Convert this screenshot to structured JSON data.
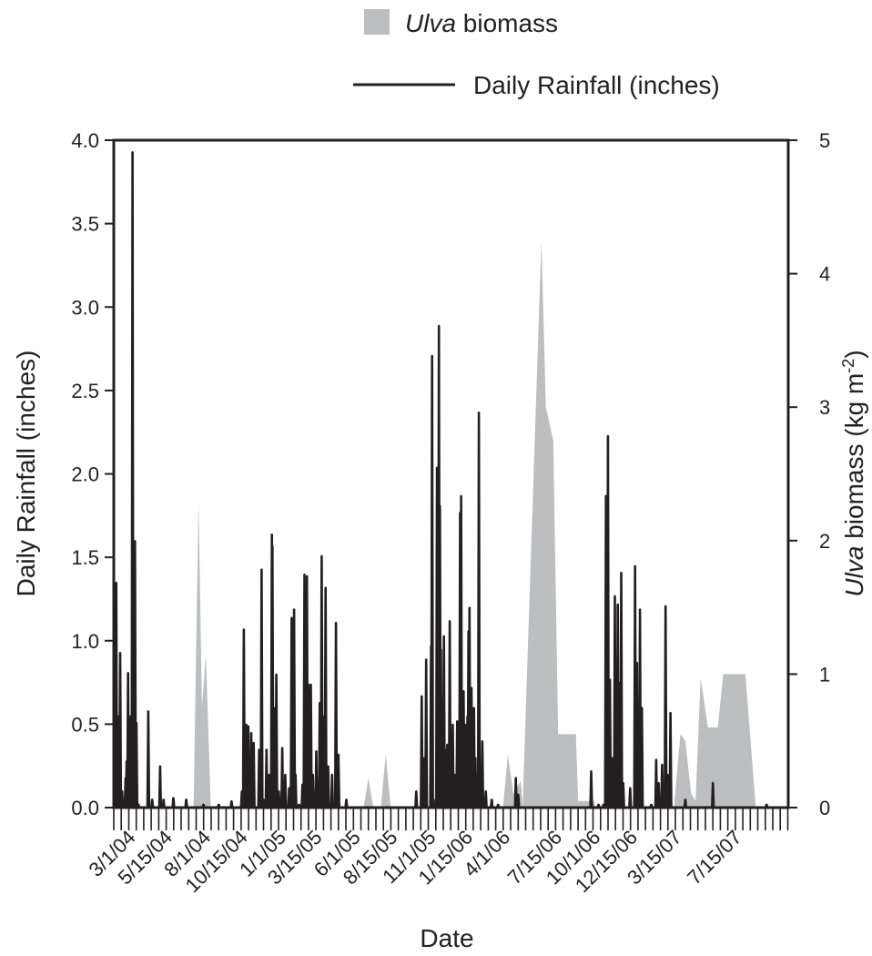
{
  "chart_data": {
    "type": "line",
    "title": "",
    "xlabel": "Date",
    "ylabel_left": "Daily Rainfall (inches)",
    "ylabel_right_italic": "Ulva",
    "ylabel_right_rest": " biomass (kg m",
    "ylabel_right_sup": "-2",
    "ylabel_right_close": ")",
    "ylim_left": [
      0,
      4.0
    ],
    "ylim_right": [
      0,
      5
    ],
    "yticks_left": [
      "0.0",
      "0.5",
      "1.0",
      "1.5",
      "2.0",
      "2.5",
      "3.0",
      "3.5",
      "4.0"
    ],
    "yticks_right": [
      "0",
      "1",
      "2",
      "3",
      "4",
      "5"
    ],
    "xlim": [
      "2004-01-15",
      "2007-10-15"
    ],
    "xtick_labels": [
      "3/1/04",
      "5/15/04",
      "8/1/04",
      "10/15/04",
      "1/1/05",
      "3/15/05",
      "6/1/05",
      "8/15/05",
      "11/1/05",
      "1/15/06",
      "4/1/06",
      "7/15/06",
      "10/1/06",
      "12/15/06",
      "3/15/07",
      "7/15/07"
    ],
    "xtick_dates": [
      "2004-03-01",
      "2004-05-15",
      "2004-08-01",
      "2004-10-15",
      "2005-01-01",
      "2005-03-15",
      "2005-06-01",
      "2005-08-15",
      "2005-11-01",
      "2006-01-15",
      "2006-04-01",
      "2006-07-15",
      "2006-10-01",
      "2006-12-15",
      "2007-03-15",
      "2007-07-15"
    ],
    "legend": {
      "position": "top-right",
      "entries": [
        {
          "italic": "Ulva",
          "rest": " biomass",
          "style": "area",
          "color": "#bcbec0"
        },
        {
          "italic": "",
          "rest": "Daily Rainfall (inches)",
          "style": "line",
          "color": "#231f20"
        }
      ]
    },
    "series": [
      {
        "name": "Ulva biomass",
        "style": "area",
        "axis": "right",
        "color": "#bcbec0",
        "points": [
          [
            "2004-06-25",
            0
          ],
          [
            "2004-07-05",
            2.3
          ],
          [
            "2004-07-12",
            0.75
          ],
          [
            "2004-07-20",
            1.15
          ],
          [
            "2004-07-30",
            0
          ],
          [
            "2005-06-05",
            0
          ],
          [
            "2005-06-15",
            0.22
          ],
          [
            "2005-06-25",
            0
          ],
          [
            "2005-07-10",
            0
          ],
          [
            "2005-07-20",
            0.4
          ],
          [
            "2005-07-30",
            0
          ],
          [
            "2006-03-15",
            0
          ],
          [
            "2006-03-25",
            0.4
          ],
          [
            "2006-04-05",
            0.1
          ],
          [
            "2006-04-20",
            0.2
          ],
          [
            "2006-04-25",
            0
          ],
          [
            "2006-04-25",
            0.15
          ],
          [
            "2006-06-01",
            4.25
          ],
          [
            "2006-06-10",
            3.0
          ],
          [
            "2006-06-25",
            2.75
          ],
          [
            "2006-07-05",
            0.55
          ],
          [
            "2006-08-10",
            0.55
          ],
          [
            "2006-08-15",
            0
          ],
          [
            "2006-08-15",
            0.05
          ],
          [
            "2006-09-15",
            0.05
          ],
          [
            "2006-09-20",
            0
          ],
          [
            "2007-02-25",
            0
          ],
          [
            "2007-03-10",
            0.55
          ],
          [
            "2007-03-20",
            0.5
          ],
          [
            "2007-04-01",
            0.1
          ],
          [
            "2007-04-10",
            0.05
          ],
          [
            "2007-04-20",
            0.97
          ],
          [
            "2007-05-05",
            0.6
          ],
          [
            "2007-05-25",
            0.6
          ],
          [
            "2007-06-05",
            1.0
          ],
          [
            "2007-07-20",
            1.0
          ],
          [
            "2007-08-10",
            0
          ]
        ]
      },
      {
        "name": "Daily Rainfall (inches)",
        "style": "line",
        "axis": "left",
        "color": "#231f20",
        "points": [
          [
            "2004-01-20",
            1.35
          ],
          [
            "2004-01-25",
            0.55
          ],
          [
            "2004-01-28",
            0.93
          ],
          [
            "2004-02-01",
            0.1
          ],
          [
            "2004-02-08",
            0.18
          ],
          [
            "2004-02-10",
            0.28
          ],
          [
            "2004-02-13",
            0.81
          ],
          [
            "2004-02-16",
            0.05
          ],
          [
            "2004-02-18",
            0.55
          ],
          [
            "2004-02-22",
            3.93
          ],
          [
            "2004-02-25",
            0.1
          ],
          [
            "2004-02-27",
            1.6
          ],
          [
            "2004-03-01",
            0.51
          ],
          [
            "2004-03-05",
            0.02
          ],
          [
            "2004-03-25",
            0.58
          ],
          [
            "2004-04-02",
            0.05
          ],
          [
            "2004-04-18",
            0.25
          ],
          [
            "2004-04-25",
            0.05
          ],
          [
            "2004-05-15",
            0.06
          ],
          [
            "2004-06-10",
            0.05
          ],
          [
            "2004-07-15",
            0.02
          ],
          [
            "2004-08-15",
            0.02
          ],
          [
            "2004-09-10",
            0.04
          ],
          [
            "2004-10-01",
            0.1
          ],
          [
            "2004-10-05",
            1.07
          ],
          [
            "2004-10-10",
            0.5
          ],
          [
            "2004-10-14",
            0.49
          ],
          [
            "2004-10-18",
            0.15
          ],
          [
            "2004-10-20",
            0.45
          ],
          [
            "2004-10-25",
            0.39
          ],
          [
            "2004-11-05",
            0.35
          ],
          [
            "2004-11-10",
            1.43
          ],
          [
            "2004-11-14",
            0.05
          ],
          [
            "2004-11-20",
            0.35
          ],
          [
            "2004-11-25",
            0.2
          ],
          [
            "2004-12-01",
            1.64
          ],
          [
            "2004-12-02",
            1.57
          ],
          [
            "2004-12-03",
            0.6
          ],
          [
            "2004-12-05",
            0.6
          ],
          [
            "2004-12-07",
            0.55
          ],
          [
            "2004-12-10",
            0.8
          ],
          [
            "2004-12-15",
            0.1
          ],
          [
            "2004-12-22",
            0.36
          ],
          [
            "2004-12-28",
            0.2
          ],
          [
            "2005-01-05",
            0.12
          ],
          [
            "2005-01-10",
            1.14
          ],
          [
            "2005-01-13",
            0.45
          ],
          [
            "2005-01-15",
            1.19
          ],
          [
            "2005-01-18",
            0.2
          ],
          [
            "2005-01-25",
            0.02
          ],
          [
            "2005-02-01",
            0.14
          ],
          [
            "2005-02-05",
            1.4
          ],
          [
            "2005-02-07",
            0.75
          ],
          [
            "2005-02-10",
            1.39
          ],
          [
            "2005-02-13",
            0.74
          ],
          [
            "2005-02-16",
            0.45
          ],
          [
            "2005-02-18",
            0.74
          ],
          [
            "2005-02-22",
            0.2
          ],
          [
            "2005-03-01",
            0.34
          ],
          [
            "2005-03-08",
            0.63
          ],
          [
            "2005-03-12",
            1.51
          ],
          [
            "2005-03-15",
            0.55
          ],
          [
            "2005-03-20",
            1.32
          ],
          [
            "2005-03-25",
            0.25
          ],
          [
            "2005-04-02",
            0.2
          ],
          [
            "2005-04-10",
            1.11
          ],
          [
            "2005-04-15",
            0.32
          ],
          [
            "2005-05-01",
            0.05
          ],
          [
            "2005-09-20",
            0.1
          ],
          [
            "2005-10-01",
            0.67
          ],
          [
            "2005-10-06",
            0.3
          ],
          [
            "2005-10-10",
            0.89
          ],
          [
            "2005-10-20",
            0.97
          ],
          [
            "2005-10-22",
            2.71
          ],
          [
            "2005-10-25",
            0.05
          ],
          [
            "2005-11-01",
            2.04
          ],
          [
            "2005-11-03",
            0.95
          ],
          [
            "2005-11-05",
            2.89
          ],
          [
            "2005-11-07",
            1.81
          ],
          [
            "2005-11-09",
            0.95
          ],
          [
            "2005-11-12",
            0.55
          ],
          [
            "2005-11-15",
            1.03
          ],
          [
            "2005-11-18",
            0.35
          ],
          [
            "2005-11-22",
            0.38
          ],
          [
            "2005-11-27",
            1.12
          ],
          [
            "2005-12-03",
            0.5
          ],
          [
            "2005-12-08",
            0.2
          ],
          [
            "2005-12-12",
            0.52
          ],
          [
            "2005-12-18",
            1.77
          ],
          [
            "2005-12-20",
            1.87
          ],
          [
            "2005-12-22",
            0.3
          ],
          [
            "2005-12-25",
            0.7
          ],
          [
            "2005-12-28",
            0.5
          ],
          [
            "2005-12-30",
            0.35
          ],
          [
            "2006-01-02",
            0.55
          ],
          [
            "2006-01-04",
            1.06
          ],
          [
            "2006-01-06",
            1.2
          ],
          [
            "2006-01-08",
            0.45
          ],
          [
            "2006-01-10",
            0.72
          ],
          [
            "2006-01-13",
            0.15
          ],
          [
            "2006-01-15",
            0.6
          ],
          [
            "2006-01-18",
            0.3
          ],
          [
            "2006-01-20",
            0.2
          ],
          [
            "2006-01-25",
            2.37
          ],
          [
            "2006-02-01",
            0.4
          ],
          [
            "2006-02-08",
            0.1
          ],
          [
            "2006-02-20",
            0.05
          ],
          [
            "2006-03-05",
            0.02
          ],
          [
            "2006-04-10",
            0.18
          ],
          [
            "2006-04-15",
            0.08
          ],
          [
            "2006-09-10",
            0.22
          ],
          [
            "2006-09-25",
            0.02
          ],
          [
            "2006-10-05",
            0.02
          ],
          [
            "2006-10-10",
            1.87
          ],
          [
            "2006-10-12",
            0.67
          ],
          [
            "2006-10-14",
            2.23
          ],
          [
            "2006-10-16",
            0.32
          ],
          [
            "2006-10-18",
            0.77
          ],
          [
            "2006-10-22",
            0.3
          ],
          [
            "2006-10-24",
            0.15
          ],
          [
            "2006-10-28",
            1.27
          ],
          [
            "2006-10-31",
            0.4
          ],
          [
            "2006-11-03",
            1.22
          ],
          [
            "2006-11-06",
            0.75
          ],
          [
            "2006-11-10",
            1.41
          ],
          [
            "2006-11-14",
            0.15
          ],
          [
            "2006-11-28",
            0.12
          ],
          [
            "2006-12-08",
            1.45
          ],
          [
            "2006-12-12",
            0.87
          ],
          [
            "2006-12-14",
            0.45
          ],
          [
            "2006-12-18",
            1.19
          ],
          [
            "2006-12-22",
            0.6
          ],
          [
            "2007-01-10",
            0.02
          ],
          [
            "2007-01-20",
            0.29
          ],
          [
            "2007-01-25",
            0.15
          ],
          [
            "2007-02-01",
            0.26
          ],
          [
            "2007-02-05",
            0.12
          ],
          [
            "2007-02-08",
            1.21
          ],
          [
            "2007-02-12",
            0.2
          ],
          [
            "2007-02-18",
            0.57
          ],
          [
            "2007-03-20",
            0.05
          ],
          [
            "2007-05-15",
            0.15
          ],
          [
            "2007-09-01",
            0.02
          ]
        ]
      }
    ]
  }
}
